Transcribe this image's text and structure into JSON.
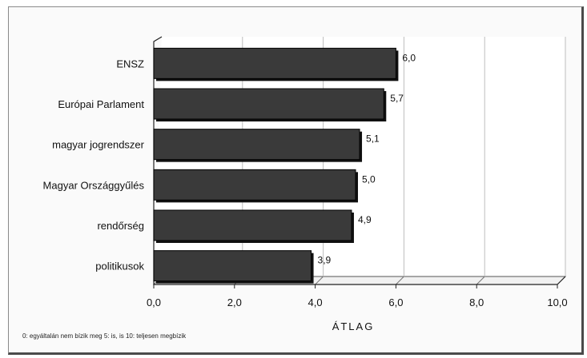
{
  "chart_data": {
    "type": "bar",
    "orientation": "horizontal",
    "categories": [
      "ENSZ",
      "Európai Parlament",
      "magyar jogrendszer",
      "Magyar Országgyűlés",
      "rendőrség",
      "politikusok"
    ],
    "values": [
      6.0,
      5.7,
      5.1,
      5.0,
      4.9,
      3.9
    ],
    "value_labels": [
      "6,0",
      "5,7",
      "5,1",
      "5,0",
      "4,9",
      "3,9"
    ],
    "xlabel": "ÁTLAG",
    "xlim": [
      0,
      10
    ],
    "xticks": [
      0,
      2,
      4,
      6,
      8,
      10
    ],
    "xtick_labels": [
      "0,0",
      "2,0",
      "4,0",
      "6,0",
      "8,0",
      "10,0"
    ],
    "grid": true,
    "bar_color": "#3a3a3a",
    "footnote": "0: egyáltalán nem bízik meg    5: is, is    10: teljesen megbízik"
  }
}
